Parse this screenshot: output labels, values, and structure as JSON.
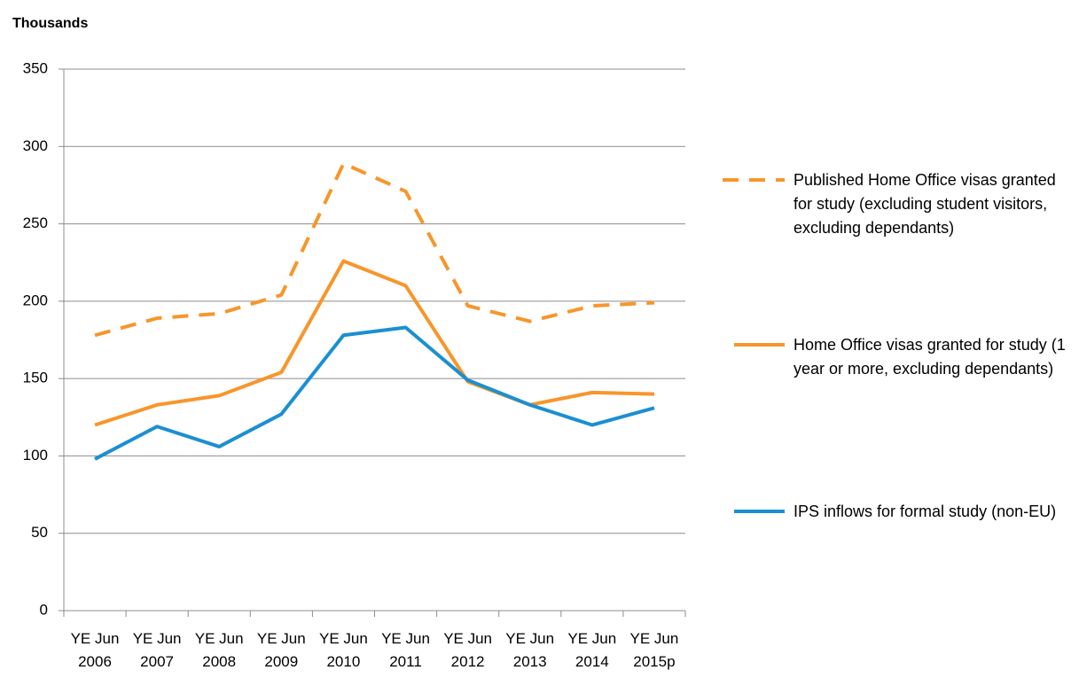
{
  "chart_data": {
    "type": "line",
    "y_axis_label": "Thousands",
    "categories": [
      "YE Jun 2006",
      "YE Jun 2007",
      "YE Jun 2008",
      "YE Jun 2009",
      "YE Jun 2010",
      "YE Jun 2011",
      "YE Jun 2012",
      "YE Jun 2013",
      "YE Jun 2014",
      "YE Jun 2015p"
    ],
    "series": [
      {
        "name": "Published Home Office visas granted for study (excluding student visitors, excluding dependants)",
        "color": "#f7962b",
        "dashed": true,
        "values": [
          178,
          189,
          192,
          204,
          289,
          271,
          197,
          187,
          197,
          199
        ]
      },
      {
        "name": "Home Office visas granted for study (1 year or more, excluding dependants)",
        "color": "#f7962b",
        "dashed": false,
        "values": [
          120,
          133,
          139,
          154,
          226,
          210,
          148,
          133,
          141,
          140
        ]
      },
      {
        "name": "IPS inflows for formal study (non-EU)",
        "color": "#1b8fd2",
        "dashed": false,
        "values": [
          98,
          119,
          106,
          127,
          178,
          183,
          149,
          133,
          120,
          131
        ]
      }
    ],
    "ylim": [
      0,
      350
    ],
    "yticks": [
      0,
      50,
      100,
      150,
      200,
      250,
      300,
      350
    ],
    "grid": true,
    "legend": "right"
  }
}
